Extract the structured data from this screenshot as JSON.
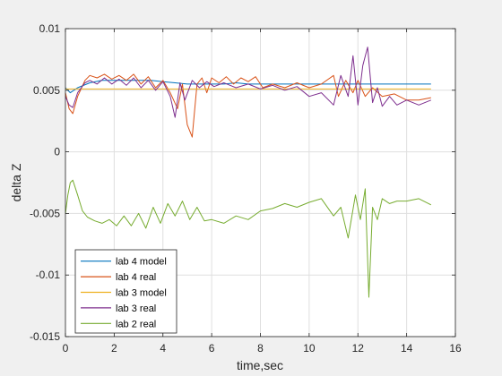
{
  "chart_data": {
    "type": "line",
    "title": "",
    "xlabel": "time,sec",
    "ylabel": "delta Z",
    "xlim": [
      0,
      16
    ],
    "ylim": [
      -0.015,
      0.01
    ],
    "xticks": [
      0,
      2,
      4,
      6,
      8,
      10,
      12,
      14,
      16
    ],
    "xtick_labels": [
      "0",
      "2",
      "4",
      "6",
      "8",
      "10",
      "12",
      "14",
      "16"
    ],
    "yticks": [
      -0.015,
      -0.01,
      -0.005,
      0,
      0.005,
      0.01
    ],
    "ytick_labels": [
      "-0.015",
      "-0.01",
      "-0.005",
      "0",
      "0.005",
      "0.01"
    ],
    "grid": true,
    "legend_position": "bottom-left",
    "series": [
      {
        "name": "lab 4 model",
        "color": "#0072bd",
        "x": [
          0,
          0.2,
          0.5,
          1,
          1.5,
          2,
          2.5,
          3,
          3.5,
          4,
          4.5,
          5,
          5.5,
          6,
          6.5,
          7,
          7.5,
          8,
          9,
          10,
          11,
          12,
          13,
          14,
          15
        ],
        "y": [
          0.0052,
          0.0048,
          0.0052,
          0.0056,
          0.0058,
          0.0058,
          0.0058,
          0.0058,
          0.0058,
          0.0057,
          0.0056,
          0.0055,
          0.0055,
          0.0055,
          0.0055,
          0.0056,
          0.0055,
          0.0055,
          0.0055,
          0.0055,
          0.0055,
          0.0055,
          0.0055,
          0.0055,
          0.0055
        ]
      },
      {
        "name": "lab 4 real",
        "color": "#d95319",
        "x": [
          0,
          0.15,
          0.3,
          0.5,
          0.8,
          1.0,
          1.3,
          1.6,
          1.9,
          2.2,
          2.5,
          2.8,
          3.1,
          3.4,
          3.7,
          4.0,
          4.3,
          4.6,
          4.8,
          5.0,
          5.2,
          5.4,
          5.6,
          5.8,
          6.0,
          6.3,
          6.6,
          6.9,
          7.2,
          7.5,
          7.8,
          8.1,
          8.5,
          9.0,
          9.5,
          10.0,
          10.5,
          11.0,
          11.2,
          11.5,
          11.8,
          12.0,
          12.3,
          12.6,
          13.0,
          13.5,
          14.0,
          14.5,
          15.0
        ],
        "y": [
          0.0048,
          0.0035,
          0.0031,
          0.0045,
          0.0058,
          0.0062,
          0.006,
          0.0063,
          0.0059,
          0.0062,
          0.0058,
          0.0063,
          0.0055,
          0.0061,
          0.0052,
          0.0058,
          0.0048,
          0.0035,
          0.0055,
          0.0022,
          0.0012,
          0.0055,
          0.006,
          0.0048,
          0.006,
          0.0056,
          0.0061,
          0.0055,
          0.006,
          0.0057,
          0.0061,
          0.0052,
          0.0055,
          0.0052,
          0.0056,
          0.0052,
          0.0055,
          0.0062,
          0.0045,
          0.0058,
          0.0048,
          0.0058,
          0.0045,
          0.0052,
          0.0045,
          0.0047,
          0.0042,
          0.0042,
          0.0044
        ]
      },
      {
        "name": "lab 3 model",
        "color": "#edb120",
        "x": [
          0,
          15
        ],
        "y": [
          0.0051,
          0.0051
        ]
      },
      {
        "name": "lab 3 real",
        "color": "#7e2f8e",
        "x": [
          0,
          0.15,
          0.3,
          0.5,
          0.8,
          1.0,
          1.3,
          1.6,
          1.9,
          2.2,
          2.5,
          2.8,
          3.1,
          3.4,
          3.7,
          4.0,
          4.3,
          4.5,
          4.7,
          4.9,
          5.2,
          5.5,
          5.8,
          6.1,
          6.5,
          7.0,
          7.5,
          8.0,
          8.5,
          9.0,
          9.5,
          10.0,
          10.5,
          11.0,
          11.3,
          11.6,
          11.8,
          12.0,
          12.2,
          12.4,
          12.6,
          12.8,
          13.0,
          13.3,
          13.6,
          14.0,
          14.5,
          15.0
        ],
        "y": [
          0.0045,
          0.0038,
          0.0036,
          0.0048,
          0.0056,
          0.0058,
          0.0055,
          0.006,
          0.0055,
          0.0059,
          0.0054,
          0.006,
          0.0052,
          0.0058,
          0.005,
          0.0057,
          0.0045,
          0.0028,
          0.0056,
          0.0042,
          0.0058,
          0.0052,
          0.0057,
          0.0053,
          0.0056,
          0.0052,
          0.0055,
          0.0051,
          0.0054,
          0.005,
          0.0053,
          0.0045,
          0.0048,
          0.0038,
          0.0062,
          0.0045,
          0.0078,
          0.0038,
          0.007,
          0.0085,
          0.004,
          0.0052,
          0.0037,
          0.0045,
          0.0038,
          0.0042,
          0.0038,
          0.0042
        ]
      },
      {
        "name": "lab 2 real",
        "color": "#77ac30",
        "x": [
          0,
          0.1,
          0.2,
          0.3,
          0.5,
          0.7,
          0.9,
          1.2,
          1.5,
          1.8,
          2.1,
          2.4,
          2.7,
          3.0,
          3.3,
          3.6,
          3.9,
          4.2,
          4.5,
          4.8,
          5.1,
          5.4,
          5.7,
          6.0,
          6.5,
          7.0,
          7.5,
          8.0,
          8.5,
          9.0,
          9.5,
          10.0,
          10.5,
          11.0,
          11.3,
          11.6,
          11.9,
          12.1,
          12.3,
          12.45,
          12.6,
          12.8,
          13.0,
          13.3,
          13.6,
          14.0,
          14.5,
          15.0
        ],
        "y": [
          -0.005,
          -0.0035,
          -0.0025,
          -0.0023,
          -0.0035,
          -0.0048,
          -0.0053,
          -0.0056,
          -0.0058,
          -0.0055,
          -0.006,
          -0.0052,
          -0.006,
          -0.005,
          -0.0062,
          -0.0045,
          -0.0058,
          -0.0042,
          -0.0052,
          -0.004,
          -0.0055,
          -0.0045,
          -0.0056,
          -0.0055,
          -0.0058,
          -0.0052,
          -0.0055,
          -0.0048,
          -0.0046,
          -0.0042,
          -0.0045,
          -0.0041,
          -0.0038,
          -0.0052,
          -0.0045,
          -0.007,
          -0.0035,
          -0.0055,
          -0.003,
          -0.0118,
          -0.0045,
          -0.0055,
          -0.0038,
          -0.0042,
          -0.004,
          -0.004,
          -0.0038,
          -0.0043
        ]
      }
    ]
  }
}
